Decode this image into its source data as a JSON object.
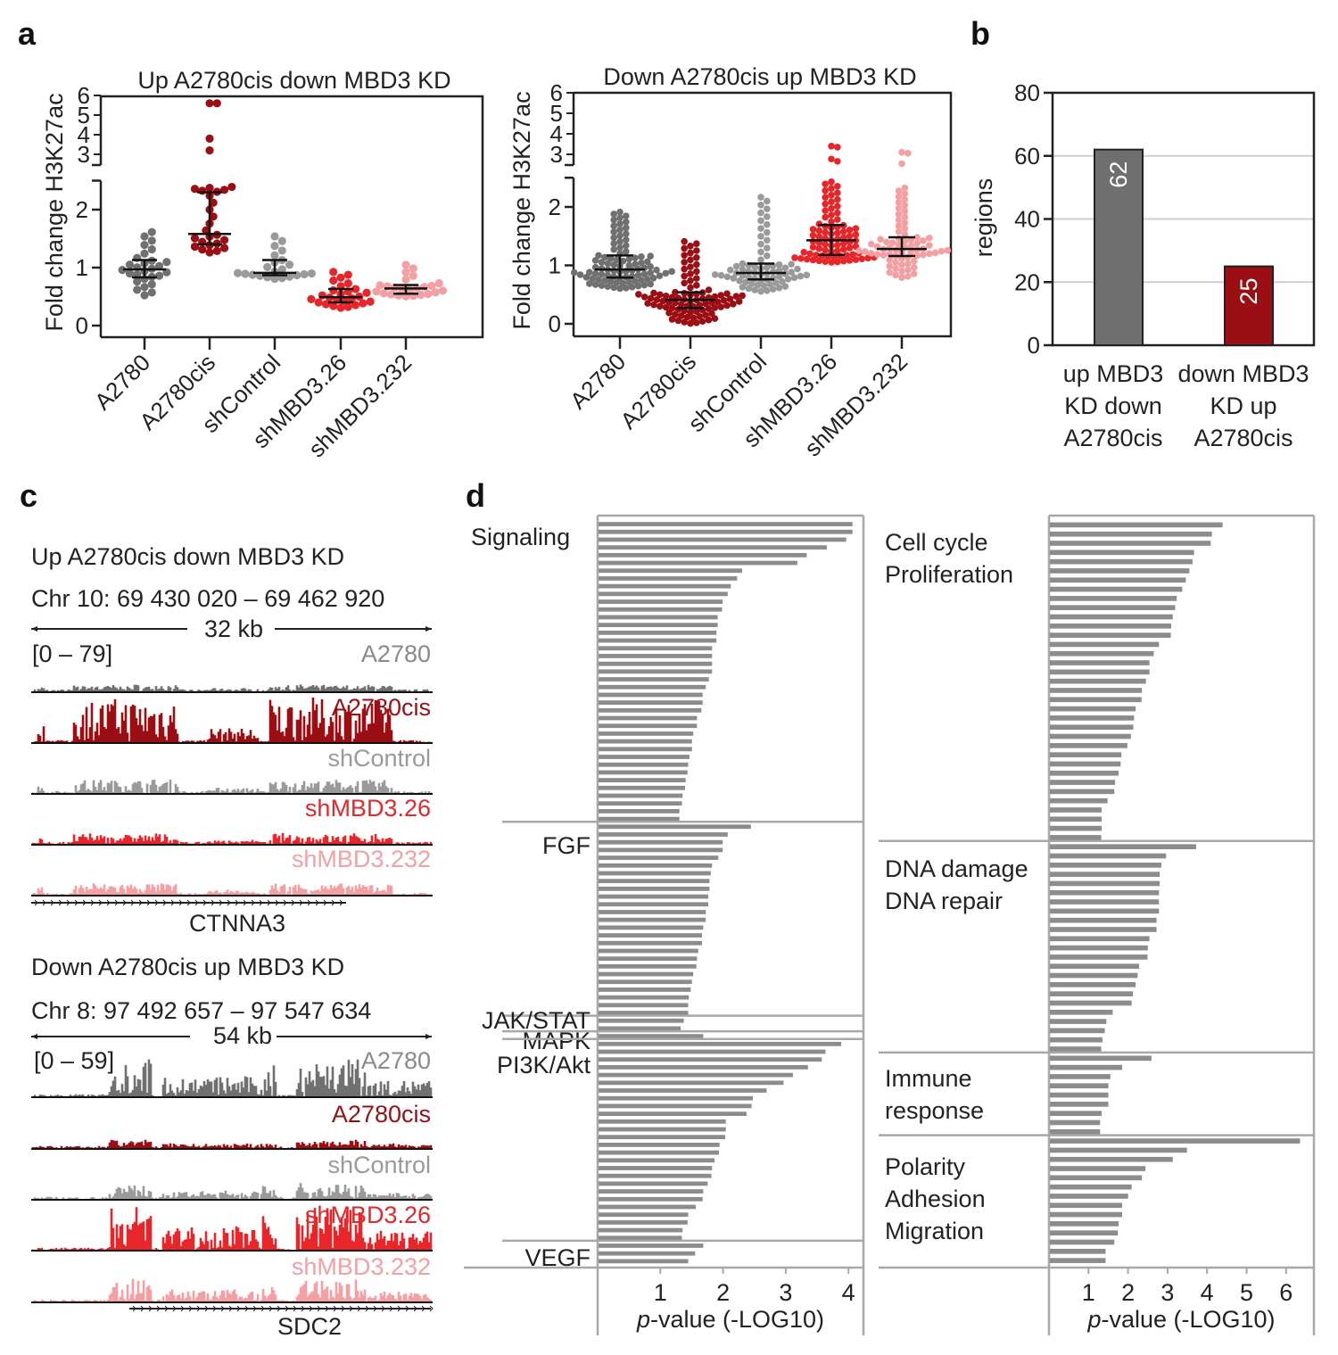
{
  "panel_labels": {
    "a": "a",
    "b": "b",
    "c": "c",
    "d": "d"
  },
  "colors": {
    "A2780": "#707070",
    "A2780cis": "#9b0f14",
    "shControl": "#9a9a9a",
    "shMBD3.26": "#e8262a",
    "shMBD3.232": "#f4a0a3",
    "bar_gray": "#8c8c8c",
    "frame": "#a8a8a8"
  },
  "chart_data": [
    {
      "id": "a-left",
      "type": "scatter",
      "title": "Up A2780cis  down MBD3 KD",
      "ylabel": "Fold change H3K27ac",
      "ylim": [
        0,
        6
      ],
      "axis_break": [
        2.5,
        3
      ],
      "yticks_lower": [
        "0",
        "1",
        "2"
      ],
      "yticks_upper": [
        "3",
        "4",
        "5",
        "6"
      ],
      "categories": [
        "A2780",
        "A2780cis",
        "shControl",
        "shMBD3.26",
        "shMBD3.232"
      ],
      "groups": [
        {
          "name": "A2780",
          "n": 28,
          "min": 0.5,
          "q1": 0.83,
          "median": 0.97,
          "q3": 1.13,
          "max": 1.65,
          "outliers": []
        },
        {
          "name": "A2780cis",
          "n": 24,
          "min": 1.25,
          "q1": 1.4,
          "median": 1.58,
          "q3": 2.3,
          "max": 2.4,
          "outliers": [
            5.6,
            5.6,
            3.8,
            3.2
          ]
        },
        {
          "name": "shControl",
          "n": 22,
          "min": 0.8,
          "q1": 0.87,
          "median": 0.91,
          "q3": 1.13,
          "max": 1.58,
          "outliers": []
        },
        {
          "name": "shMBD3.26",
          "n": 26,
          "min": 0.3,
          "q1": 0.4,
          "median": 0.49,
          "q3": 0.63,
          "max": 0.95,
          "outliers": []
        },
        {
          "name": "shMBD3.232",
          "n": 24,
          "min": 0.5,
          "q1": 0.55,
          "median": 0.64,
          "q3": 0.7,
          "max": 1.08,
          "outliers": []
        }
      ]
    },
    {
      "id": "a-right",
      "type": "scatter",
      "title": "Down A2780cis  up MBD3 KD",
      "ylabel": "Fold change H3K27ac",
      "ylim": [
        0,
        6
      ],
      "axis_break": [
        2.5,
        3
      ],
      "yticks_lower": [
        "0",
        "1",
        "2"
      ],
      "yticks_upper": [
        "3",
        "4",
        "5",
        "6"
      ],
      "categories": [
        "A2780",
        "A2780cis",
        "shControl",
        "shMBD3.26",
        "shMBD3.232"
      ],
      "groups": [
        {
          "name": "A2780",
          "n": 90,
          "min": 0.6,
          "q1": 0.79,
          "median": 0.93,
          "q3": 1.17,
          "max": 1.93,
          "outliers": []
        },
        {
          "name": "A2780cis",
          "n": 90,
          "min": 0.0,
          "q1": 0.27,
          "median": 0.41,
          "q3": 0.54,
          "max": 1.43,
          "outliers": []
        },
        {
          "name": "shControl",
          "n": 70,
          "min": 0.55,
          "q1": 0.76,
          "median": 0.87,
          "q3": 1.03,
          "max": 2.2,
          "outliers": []
        },
        {
          "name": "shMBD3.26",
          "n": 80,
          "min": 1.05,
          "q1": 1.18,
          "median": 1.43,
          "q3": 1.69,
          "max": 2.45,
          "outliers": [
            3.4,
            3.35,
            2.9,
            2.85
          ]
        },
        {
          "name": "shMBD3.232",
          "n": 70,
          "min": 0.78,
          "q1": 1.16,
          "median": 1.28,
          "q3": 1.48,
          "max": 2.35,
          "outliers": [
            3.1,
            3.05,
            2.8
          ]
        }
      ]
    },
    {
      "id": "b",
      "type": "bar",
      "ylabel": "regions",
      "ylim": [
        0,
        80
      ],
      "yticks": [
        "0",
        "20",
        "40",
        "60",
        "80"
      ],
      "grid": true,
      "categories": [
        [
          "up MBD3",
          "KD down",
          "A2780cis"
        ],
        [
          "down MBD3",
          "KD up",
          "A2780cis"
        ]
      ],
      "values": [
        62,
        25
      ],
      "value_labels": [
        "62",
        "25"
      ],
      "bar_colors": [
        "#6f6f6f",
        "#9b0f14"
      ]
    },
    {
      "id": "d-left",
      "type": "bar",
      "orientation": "horizontal",
      "xlabel_p": "p",
      "xlabel": "-value (-LOG10)",
      "xlim": [
        0,
        4.25
      ],
      "xticks": [
        "1",
        "2",
        "3",
        "4"
      ],
      "sections": [
        {
          "label": [
            "Signaling"
          ],
          "values": [
            4.05,
            4.05,
            3.95,
            3.64,
            3.32,
            3.17,
            2.29,
            2.21,
            2.11,
            2.06,
            1.98,
            1.97,
            1.9,
            1.9,
            1.88,
            1.88,
            1.81,
            1.81,
            1.81,
            1.81,
            1.76,
            1.71,
            1.66,
            1.66,
            1.64,
            1.57,
            1.57,
            1.51,
            1.49,
            1.49,
            1.45,
            1.43,
            1.42,
            1.39,
            1.38,
            1.34,
            1.33,
            1.29,
            1.29
          ]
        },
        {
          "label": [
            "FGF"
          ],
          "values": [
            2.43,
            2.06,
            1.98,
            1.98,
            1.91,
            1.81,
            1.79,
            1.77,
            1.77,
            1.75,
            1.75,
            1.71,
            1.71,
            1.67,
            1.65,
            1.65,
            1.59,
            1.57,
            1.56,
            1.51,
            1.49,
            1.47,
            1.44,
            1.43,
            1.43
          ]
        },
        {
          "label": [
            "JAK/STAT"
          ],
          "values": [
            1.36,
            1.31
          ]
        },
        {
          "label": [
            "MAPK"
          ],
          "values": [
            1.67
          ]
        },
        {
          "label": [
            "PI3K/Akt"
          ],
          "values": [
            3.87,
            3.62,
            3.56,
            3.34,
            3.1,
            2.95,
            2.68,
            2.46,
            2.44,
            2.36,
            2.03,
            2.03,
            2.02,
            1.93,
            1.92,
            1.85,
            1.81,
            1.8,
            1.74,
            1.67,
            1.66,
            1.55,
            1.43,
            1.42,
            1.34,
            1.33
          ]
        },
        {
          "label": [
            "VEGF"
          ],
          "values": [
            1.67,
            1.54,
            1.43
          ]
        }
      ]
    },
    {
      "id": "d-right",
      "type": "bar",
      "orientation": "horizontal",
      "xlabel_p": "p",
      "xlabel": "-value (-LOG10)",
      "xlim": [
        0,
        6.7
      ],
      "xticks": [
        "1",
        "2",
        "3",
        "4",
        "5",
        "6"
      ],
      "sections": [
        {
          "label": [
            "Cell cycle",
            "Proliferation"
          ],
          "values": [
            4.37,
            4.1,
            4.07,
            3.65,
            3.61,
            3.53,
            3.44,
            3.35,
            3.21,
            3.17,
            3.11,
            3.07,
            3.06,
            2.76,
            2.63,
            2.52,
            2.52,
            2.43,
            2.33,
            2.32,
            2.17,
            2.13,
            2.11,
            2.05,
            1.96,
            1.81,
            1.79,
            1.74,
            1.65,
            1.63,
            1.46,
            1.31,
            1.31,
            1.31,
            1.3
          ]
        },
        {
          "label": [
            "DNA damage",
            "DNA repair"
          ],
          "values": [
            3.7,
            2.94,
            2.82,
            2.78,
            2.78,
            2.76,
            2.76,
            2.76,
            2.7,
            2.7,
            2.52,
            2.48,
            2.47,
            2.26,
            2.22,
            2.17,
            2.1,
            2.07,
            1.59,
            1.43,
            1.39,
            1.33,
            1.3
          ]
        },
        {
          "label": [
            "Immune",
            "response"
          ],
          "values": [
            2.57,
            1.83,
            1.53,
            1.48,
            1.48,
            1.48,
            1.31,
            1.27,
            1.27
          ]
        },
        {
          "label": [
            "Polarity",
            "Adhesion",
            "Migration"
          ],
          "values": [
            6.33,
            3.47,
            3.11,
            2.42,
            2.33,
            2.07,
            1.98,
            1.83,
            1.83,
            1.74,
            1.72,
            1.63,
            1.41,
            1.41
          ]
        }
      ]
    }
  ],
  "tracks": {
    "top": {
      "title": "Up A2780cis  down MBD3 KD",
      "locus": "Chr 10: 69 430 020 – 69 462 920",
      "scale": "32 kb",
      "range": "[0 – 79]",
      "gene": "CTNNA3",
      "samples": [
        "A2780",
        "A2780cis",
        "shControl",
        "shMBD3.26",
        "shMBD3.232"
      ]
    },
    "bottom": {
      "title": "Down A2780cis  up MBD3 KD",
      "locus": "Chr 8: 97 492 657 – 97 547 634",
      "scale": "54 kb",
      "range": "[0 – 59]",
      "gene": "SDC2",
      "samples": [
        "A2780",
        "A2780cis",
        "shControl",
        "shMBD3.26",
        "shMBD3.232"
      ]
    }
  }
}
